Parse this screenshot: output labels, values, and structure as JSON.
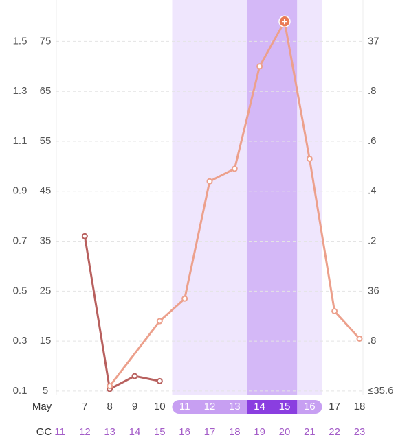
{
  "chart_data": {
    "type": "line",
    "month_label": "May",
    "cycle_label": "GC",
    "categories": [
      null,
      "7",
      "8",
      "9",
      "10",
      "11",
      "12",
      "13",
      "14",
      "15",
      "16",
      "17",
      "18"
    ],
    "cycle_days": [
      "11",
      "12",
      "13",
      "14",
      "15",
      "16",
      "17",
      "18",
      "19",
      "20",
      "21",
      "22",
      "23"
    ],
    "ylim": [
      4.3,
      83.3
    ],
    "yticks": [
      5,
      15,
      25,
      35,
      45,
      55,
      65,
      75
    ],
    "lh_lim": [
      0.086,
      1.666
    ],
    "lh_ticks": [
      0.1,
      0.3,
      0.5,
      0.7,
      0.9,
      1.1,
      1.3,
      1.5
    ],
    "y2lim": [
      35.586,
      37.166
    ],
    "y2ticks": [
      {
        "value": 35.6,
        "label": "≤35.6"
      },
      {
        "value": 35.8,
        "label": ".8"
      },
      36,
      {
        "value": 36.2,
        "label": ".2"
      },
      {
        "value": 36.4,
        "label": ".4"
      },
      {
        "value": 36.6,
        "label": ".6"
      },
      {
        "value": 36.8,
        "label": ".8"
      },
      37
    ],
    "grid": true,
    "fertile_window": {
      "start": "11",
      "end": "16",
      "color": "#efe6fd",
      "label_color": "#c79ff2"
    },
    "peak_window": {
      "start": "14",
      "end": "15",
      "color": "#d4b8f7",
      "label_color": "#8a3ee0"
    },
    "series": [
      {
        "color": "#b8605e",
        "x": [
          "7",
          "8",
          "9",
          "10"
        ],
        "values": [
          36,
          5.4,
          8,
          7
        ]
      },
      {
        "color": "#eca08c",
        "x": [
          "8",
          "10",
          "11",
          "12",
          "13",
          "14",
          "15",
          "16",
          "17",
          "18"
        ],
        "values": [
          6,
          19,
          23.5,
          47,
          49.5,
          70,
          79,
          51.5,
          21,
          15.5
        ]
      }
    ]
  }
}
